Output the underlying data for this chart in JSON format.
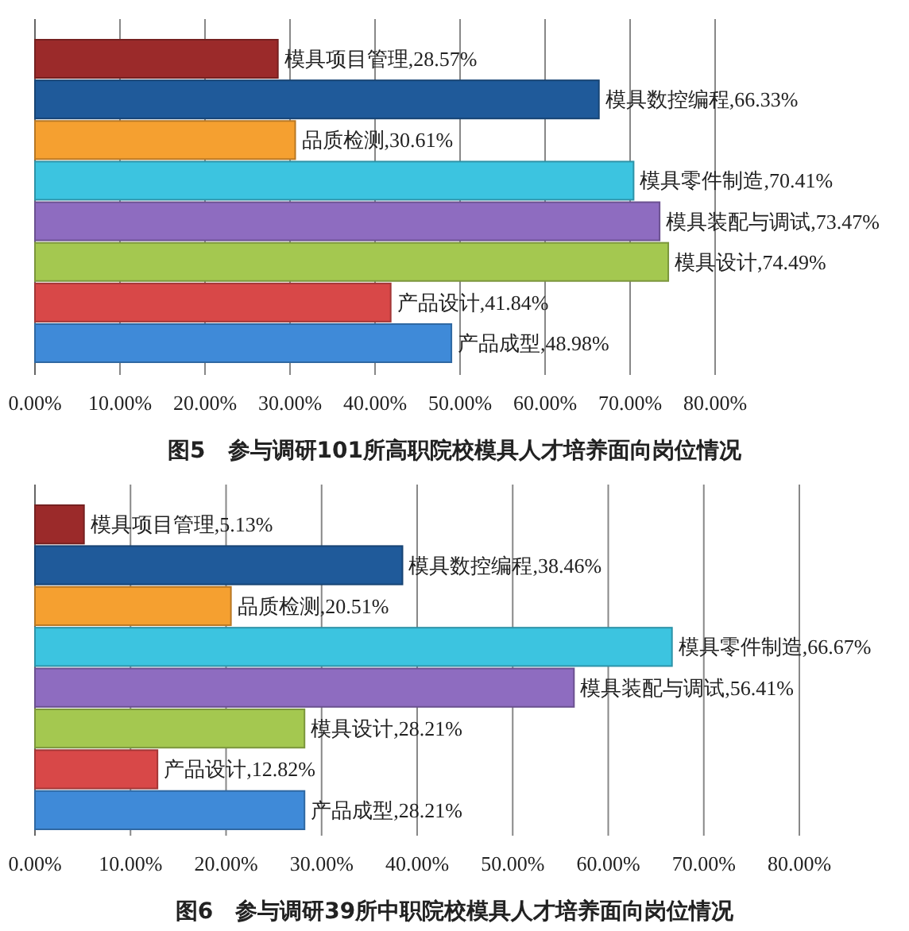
{
  "chart_data": [
    {
      "type": "bar",
      "orientation": "horizontal",
      "title": "图5　参与调研101所高职院校模具人才培养面向岗位情况",
      "categories": [
        "模具项目管理",
        "模具数控编程",
        "品质检测",
        "模具零件制造",
        "模具装配与调试",
        "模具设计",
        "产品设计",
        "产品成型"
      ],
      "values": [
        28.57,
        66.33,
        30.61,
        70.41,
        73.47,
        74.49,
        41.84,
        48.98
      ],
      "value_labels": [
        ",28.57%",
        ",66.33%",
        ",30.61%",
        ",70.41%",
        ",73.47%",
        ",74.49%",
        ",41.84%",
        ",48.98%"
      ],
      "colors": [
        "#9b2a2a",
        "#1f5a9a",
        "#f5a030",
        "#3cc4e0",
        "#8e6cc0",
        "#a4c850",
        "#d84848",
        "#3f8ad8"
      ],
      "xlim": [
        0,
        80
      ],
      "xticks": [
        {
          "value": 0,
          "label": "0.00%"
        },
        {
          "value": 10,
          "label": "10.00%"
        },
        {
          "value": 20,
          "label": "20.00%"
        },
        {
          "value": 30,
          "label": "30.00%"
        },
        {
          "value": 40,
          "label": "40.00%"
        },
        {
          "value": 50,
          "label": "50.00%"
        },
        {
          "value": 60,
          "label": "60.00%"
        },
        {
          "value": 70,
          "label": "70.00%"
        },
        {
          "value": 80,
          "label": "80.00%"
        }
      ],
      "grid": "x",
      "tick_labels": "x"
    },
    {
      "type": "bar",
      "orientation": "horizontal",
      "title": "图6　参与调研39所中职院校模具人才培养面向岗位情况",
      "categories": [
        "模具项目管理",
        "模具数控编程",
        "品质检测",
        "模具零件制造",
        "模具装配与调试",
        "模具设计",
        "产品设计",
        "产品成型"
      ],
      "values": [
        5.13,
        38.46,
        20.51,
        66.67,
        56.41,
        28.21,
        12.82,
        28.21
      ],
      "value_labels": [
        ",5.13%",
        ",38.46%",
        ",20.51%",
        ",66.67%",
        ",56.41%",
        ",28.21%",
        ",12.82%",
        ",28.21%"
      ],
      "colors": [
        "#9b2a2a",
        "#1f5a9a",
        "#f5a030",
        "#3cc4e0",
        "#8e6cc0",
        "#a4c850",
        "#d84848",
        "#3f8ad8"
      ],
      "xlim": [
        0,
        80
      ],
      "xticks": [
        {
          "value": 0,
          "label": "0.00%"
        },
        {
          "value": 10,
          "label": "10.00%"
        },
        {
          "value": 20,
          "label": "20.00%"
        },
        {
          "value": 30,
          "label": "30.00%"
        },
        {
          "value": 40,
          "label": "40.00%"
        },
        {
          "value": 50,
          "label": "50.00%"
        },
        {
          "value": 60,
          "label": "60.00%"
        },
        {
          "value": 70,
          "label": "70.00%"
        },
        {
          "value": 80,
          "label": "80.00%"
        }
      ],
      "grid": "x",
      "tick_labels": "x"
    }
  ]
}
